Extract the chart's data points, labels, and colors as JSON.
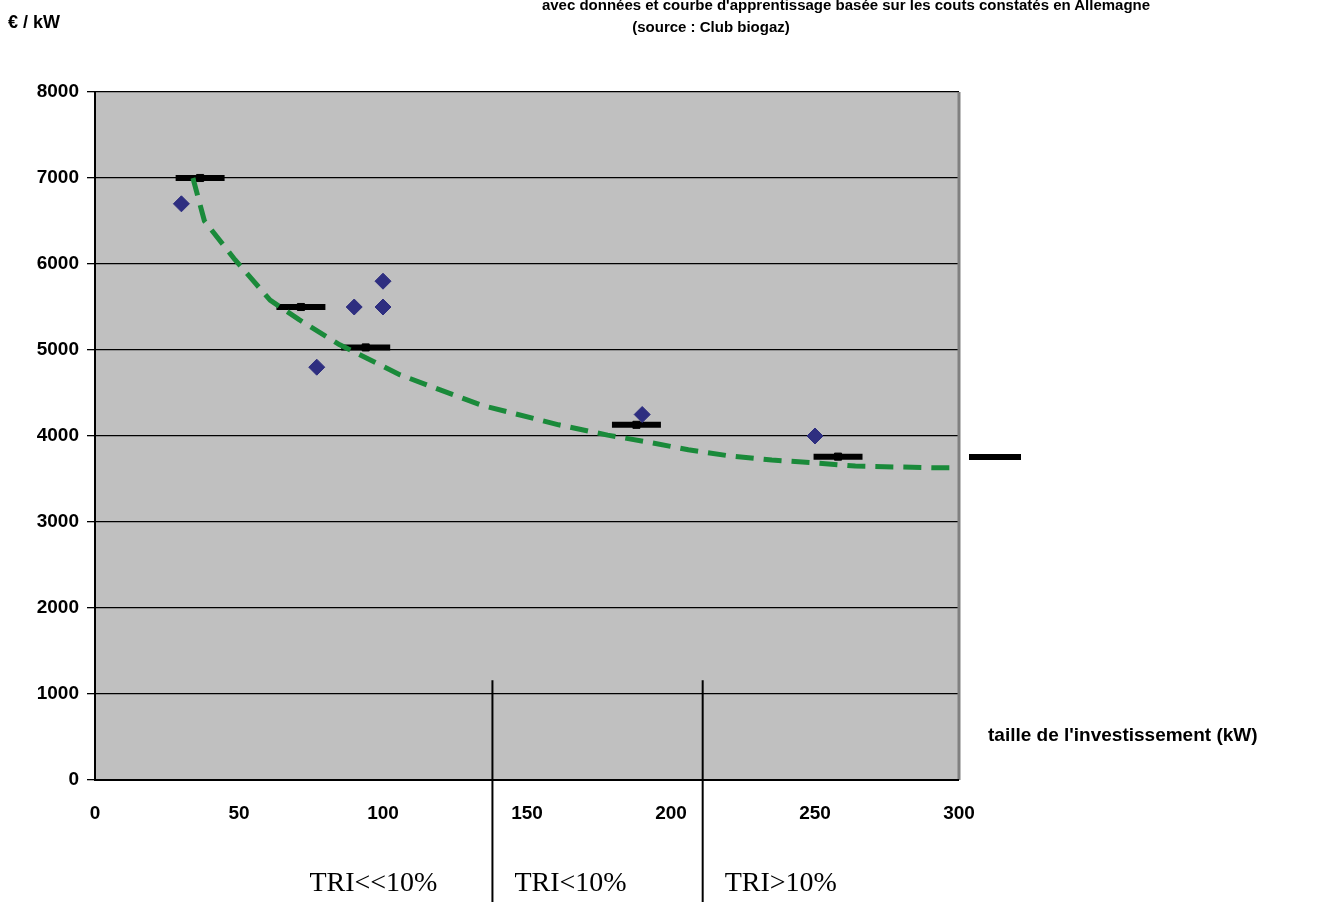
{
  "chart_data": {
    "type": "scatter",
    "title": "avec  données et courbe d'apprentissage basée sur les couts constatés en Allemagne",
    "subtitle": "(source : Club biogaz)",
    "xlabel": "taille de l'investissement (kW)",
    "ylabel": "€ / kW",
    "xlim": [
      0,
      300
    ],
    "xticks": [
      0,
      50,
      100,
      150,
      200,
      250,
      300
    ],
    "ylim": [
      0,
      8000
    ],
    "yticks": [
      0,
      1000,
      2000,
      3000,
      4000,
      5000,
      6000,
      7000,
      8000
    ],
    "grid": "y",
    "legend": false,
    "series": [
      {
        "marker": "diamond",
        "color": "#2e2e80",
        "x": [
          30,
          77,
          90,
          100,
          100,
          190,
          250
        ],
        "values": [
          6700,
          4800,
          5500,
          5800,
          5500,
          4250,
          4000
        ]
      },
      {
        "marker": "square",
        "color": "#000000",
        "x": [
          36.5,
          71.5,
          94,
          188,
          258
        ],
        "values": [
          7000,
          5500,
          5030,
          4130,
          3760
        ],
        "xerrors": [
          8.5,
          8.5,
          8.5,
          8.5,
          8.5
        ]
      },
      {
        "type": "line",
        "line_style": "dashed",
        "marker": "none",
        "color": "#1a8a3a",
        "x": [
          34,
          38,
          48.6,
          60.8,
          71,
          85,
          106,
          134,
          161,
          178,
          192,
          206,
          220,
          235,
          249,
          264,
          278,
          292,
          300
        ],
        "values": [
          7000,
          6500,
          6050,
          5580,
          5350,
          5060,
          4710,
          4360,
          4130,
          4010,
          3930,
          3840,
          3770,
          3720,
          3690,
          3650,
          3640,
          3630,
          3630
        ]
      }
    ],
    "ref_lines": [
      {
        "axis": "x",
        "value": 138,
        "color": "#000000"
      },
      {
        "axis": "x",
        "value": 211,
        "color": "#000000"
      }
    ],
    "annotations": [
      "TRI<<10%",
      "TRI<10%",
      "TRI>10%"
    ]
  }
}
